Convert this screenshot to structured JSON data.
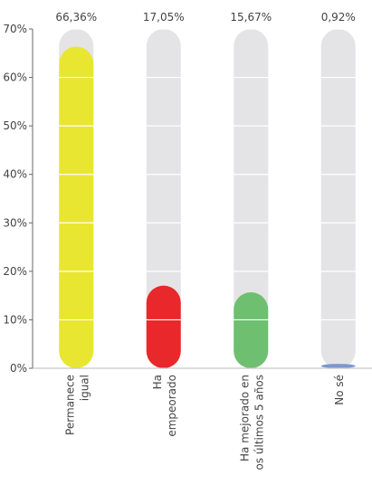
{
  "chart_data": {
    "type": "bar",
    "categories": [
      [
        "Permanece",
        "igual"
      ],
      [
        "Ha",
        "empeorado"
      ],
      [
        "Ha mejorado en",
        "os últimos 5 años"
      ],
      [
        "No sé"
      ]
    ],
    "values": [
      66.36,
      17.05,
      15.67,
      0.92
    ],
    "value_labels": [
      "66,36%",
      "17,05%",
      "15,67%",
      "0,92%"
    ],
    "colors": [
      "#e9e631",
      "#e8282b",
      "#6ebf70",
      "#7c97d0"
    ],
    "track_color": "#e4e4e6",
    "ylim": [
      0,
      70
    ],
    "yticks": [
      {
        "value": 0,
        "label": "0%"
      },
      {
        "value": 10,
        "label": "10%"
      },
      {
        "value": 20,
        "label": "20%"
      },
      {
        "value": 30,
        "label": "30%"
      },
      {
        "value": 40,
        "label": "40%"
      },
      {
        "value": 50,
        "label": "50%"
      },
      {
        "value": 60,
        "label": "60%"
      },
      {
        "value": 70,
        "label": "70%"
      }
    ],
    "grid": true
  }
}
